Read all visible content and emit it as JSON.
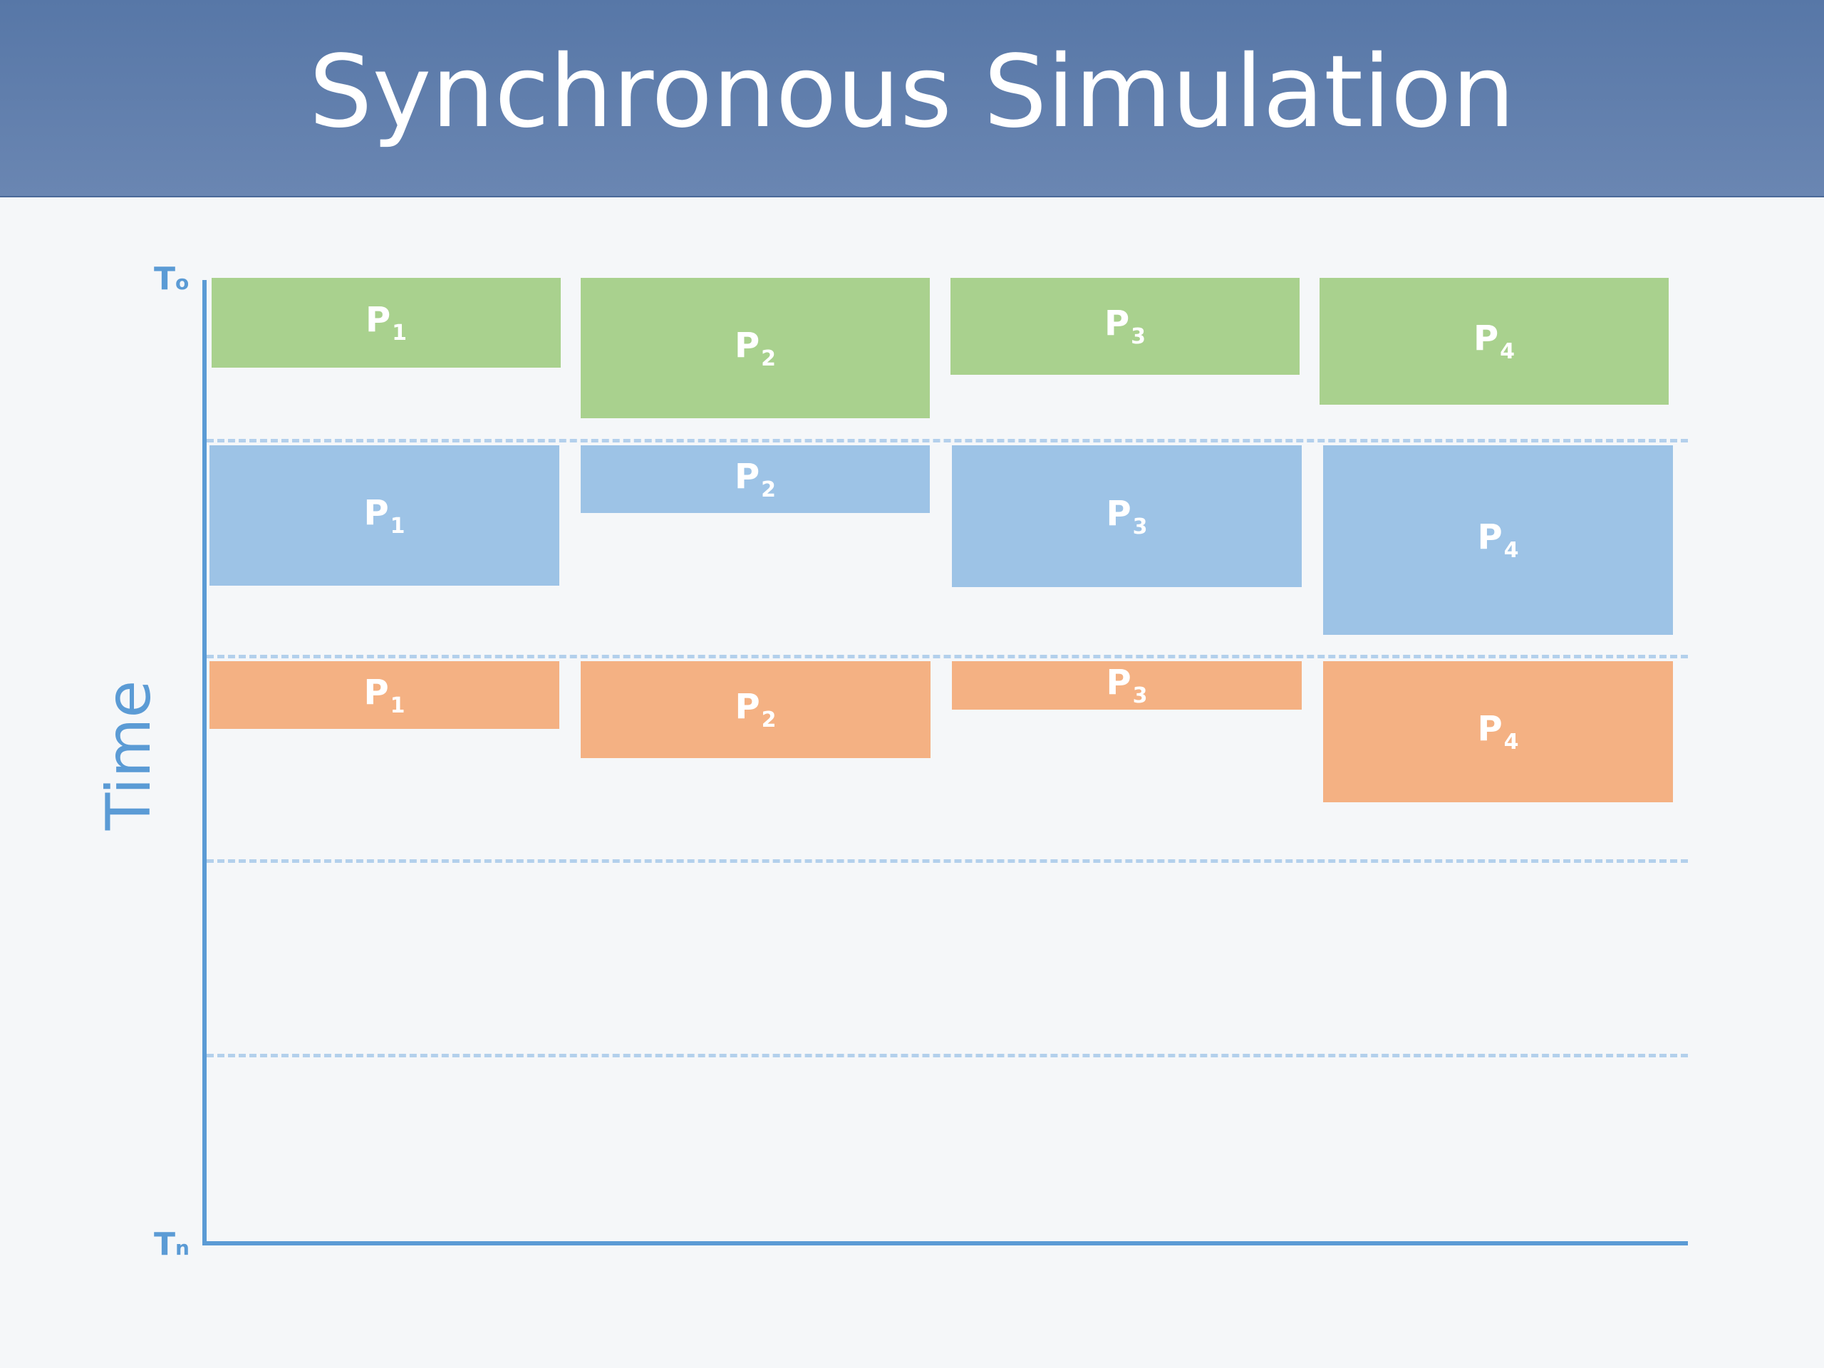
{
  "title": "Synchronous Simulation",
  "axis": {
    "label": "Time",
    "start": {
      "base": "T",
      "sub": "o"
    },
    "end": {
      "base": "T",
      "sub": "n"
    }
  },
  "colors": {
    "phase1": "#a9d18e",
    "phase2": "#9dc3e6",
    "phase3": "#f4b183",
    "axis": "#5b9bd5",
    "title_bar": "#5a7aaa"
  },
  "phases": [
    {
      "color": "green",
      "blocks": [
        {
          "base": "P",
          "sub": "1"
        },
        {
          "base": "P",
          "sub": "2"
        },
        {
          "base": "P",
          "sub": "3"
        },
        {
          "base": "P",
          "sub": "4"
        }
      ]
    },
    {
      "color": "blue",
      "blocks": [
        {
          "base": "P",
          "sub": "1"
        },
        {
          "base": "P",
          "sub": "2"
        },
        {
          "base": "P",
          "sub": "3"
        },
        {
          "base": "P",
          "sub": "4"
        }
      ]
    },
    {
      "color": "orange",
      "blocks": [
        {
          "base": "P",
          "sub": "1"
        },
        {
          "base": "P",
          "sub": "2"
        },
        {
          "base": "P",
          "sub": "3"
        },
        {
          "base": "P",
          "sub": "4"
        }
      ]
    }
  ]
}
